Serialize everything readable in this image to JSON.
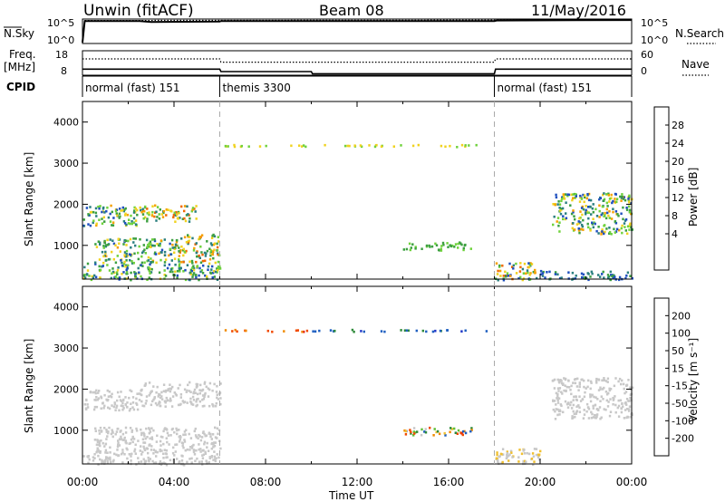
{
  "header": {
    "station": "Unwin (fitACF)",
    "beam": "Beam 08",
    "date": "11/May/2016"
  },
  "top_panels": {
    "nsky_label": "N.Sky",
    "nsky_ticks": [
      "10^5",
      "10^0"
    ],
    "nsearch_label": "N.Search",
    "nsearch_ticks": [
      "10^5",
      "10^0"
    ],
    "freq_label_line1": "Freq.",
    "freq_label_line2": "[MHz]",
    "freq_ticks": [
      "18",
      "8"
    ],
    "nave_label": "Nave",
    "nave_ticks": [
      "60",
      "0"
    ],
    "cpid_label": "CPID",
    "cpid_segments": [
      {
        "label": "normal (fast) 151",
        "start_hour": 0,
        "end_hour": 6
      },
      {
        "label": "themis 3300",
        "start_hour": 6,
        "end_hour": 18
      },
      {
        "label": "normal (fast) 151",
        "start_hour": 18,
        "end_hour": 24
      }
    ]
  },
  "axes": {
    "xlabel": "Time UT",
    "x_ticks": [
      "00:00",
      "04:00",
      "08:00",
      "12:00",
      "16:00",
      "20:00",
      "00:00"
    ],
    "ylabel": "Slant Range [km]",
    "y_ticks": [
      "4000",
      "3000",
      "2000",
      "1000"
    ]
  },
  "power_colorbar": {
    "label": "Power [dB]",
    "ticks": [
      "28",
      "24",
      "20",
      "16",
      "12",
      "8",
      "4"
    ],
    "colors": [
      "#0000f0",
      "#1e4fbf",
      "#2a7f7f",
      "#3ca040",
      "#6fd23c",
      "#f0d220",
      "#f5a000",
      "#f06a00",
      "#e00000"
    ]
  },
  "velocity_colorbar": {
    "label": "Velocity [m s⁻¹]",
    "ticks": [
      "200",
      "100",
      "50",
      "15",
      "-15",
      "-50",
      "-100",
      "-200"
    ],
    "colors": [
      "#2036c8",
      "#1e5fc0",
      "#2e8a3a",
      "#60c038",
      "#c8c8c8",
      "#f0c030",
      "#f08a00",
      "#f04a00",
      "#e00000"
    ]
  },
  "chart_data": [
    {
      "type": "line",
      "title": "N.Sky / N.Search",
      "x_range_hours": [
        0,
        24
      ],
      "series": [
        {
          "name": "N.Sky",
          "style": "solid",
          "points": [
            [
              0,
              0.2
            ],
            [
              0.1,
              4.6
            ],
            [
              2.5,
              4.6
            ],
            [
              3.0,
              4.4
            ],
            [
              6,
              4.5
            ],
            [
              6.05,
              4.6
            ],
            [
              12,
              4.6
            ],
            [
              18,
              4.6
            ],
            [
              18.1,
              4.7
            ],
            [
              24,
              4.8
            ]
          ]
        },
        {
          "name": "N.Search",
          "style": "dotted",
          "points": [
            [
              0.1,
              4.7
            ],
            [
              24,
              4.8
            ]
          ]
        }
      ]
    },
    {
      "type": "line",
      "title": "Freq. / Nave",
      "x_range_hours": [
        0,
        24
      ],
      "series": [
        {
          "name": "Freq.",
          "style": "solid",
          "points": [
            [
              0,
              10.5
            ],
            [
              6,
              10.5
            ],
            [
              6.05,
              9.5
            ],
            [
              10,
              9.5
            ],
            [
              10.05,
              8.6
            ],
            [
              18,
              8.6
            ],
            [
              18.05,
              10.5
            ],
            [
              24,
              10.5
            ]
          ]
        },
        {
          "name": "Nave",
          "style": "dotted",
          "points": [
            [
              0,
              40
            ],
            [
              6,
              40
            ],
            [
              6.05,
              32
            ],
            [
              18,
              32
            ],
            [
              18.05,
              40
            ],
            [
              24,
              40
            ]
          ]
        }
      ]
    },
    {
      "type": "heatmap",
      "title": "Power [dB]",
      "x_range_hours": [
        0,
        24
      ],
      "y_range_km": [
        180,
        4500
      ],
      "clusters": [
        {
          "t": [
            0.0,
            6.0
          ],
          "r": [
            180,
            600
          ],
          "v": [
            4,
            20
          ]
        },
        {
          "t": [
            0.0,
            2.5
          ],
          "r": [
            1500,
            2000
          ],
          "v": [
            4,
            22
          ]
        },
        {
          "t": [
            2.5,
            5.0
          ],
          "r": [
            1600,
            2000
          ],
          "v": [
            8,
            28
          ]
        },
        {
          "t": [
            4.0,
            6.0
          ],
          "r": [
            600,
            1300
          ],
          "v": [
            8,
            28
          ]
        },
        {
          "t": [
            0.5,
            4.0
          ],
          "r": [
            600,
            1200
          ],
          "v": [
            6,
            22
          ]
        },
        {
          "t": [
            6.0,
            18.0
          ],
          "r": [
            3420,
            3470
          ],
          "v": [
            16,
            20
          ]
        },
        {
          "t": [
            14.0,
            17.0
          ],
          "r": [
            900,
            1100
          ],
          "v": [
            12,
            16
          ]
        },
        {
          "t": [
            18.0,
            20.0
          ],
          "r": [
            180,
            600
          ],
          "v": [
            4,
            28
          ]
        },
        {
          "t": [
            20.5,
            24.0
          ],
          "r": [
            1300,
            2300
          ],
          "v": [
            4,
            24
          ]
        },
        {
          "t": [
            20.0,
            24.0
          ],
          "r": [
            180,
            400
          ],
          "v": [
            4,
            12
          ]
        }
      ]
    },
    {
      "type": "heatmap",
      "title": "Velocity [m s⁻¹]",
      "x_range_hours": [
        0,
        24
      ],
      "y_range_km": [
        180,
        4500
      ],
      "clusters": [
        {
          "t": [
            0.0,
            6.0
          ],
          "r": [
            180,
            500
          ],
          "v": [
            -15,
            15
          ]
        },
        {
          "t": [
            0.0,
            2.5
          ],
          "r": [
            1500,
            2000
          ],
          "v": [
            -15,
            15
          ]
        },
        {
          "t": [
            2.5,
            6.0
          ],
          "r": [
            1600,
            2200
          ],
          "v": [
            -15,
            15
          ]
        },
        {
          "t": [
            0.5,
            6.0
          ],
          "r": [
            500,
            1100
          ],
          "v": [
            -15,
            15
          ]
        },
        {
          "t": [
            6.0,
            10.0
          ],
          "r": [
            3420,
            3470
          ],
          "v": [
            -200,
            -100
          ]
        },
        {
          "t": [
            10.0,
            18.0
          ],
          "r": [
            3420,
            3470
          ],
          "v": [
            100,
            200
          ]
        },
        {
          "t": [
            14.0,
            17.0
          ],
          "r": [
            900,
            1100
          ],
          "v": [
            -200,
            200
          ]
        },
        {
          "t": [
            18.0,
            20.0
          ],
          "r": [
            180,
            600
          ],
          "v": [
            -50,
            15
          ]
        },
        {
          "t": [
            20.5,
            24.0
          ],
          "r": [
            1300,
            2300
          ],
          "v": [
            -15,
            15
          ]
        }
      ]
    }
  ]
}
